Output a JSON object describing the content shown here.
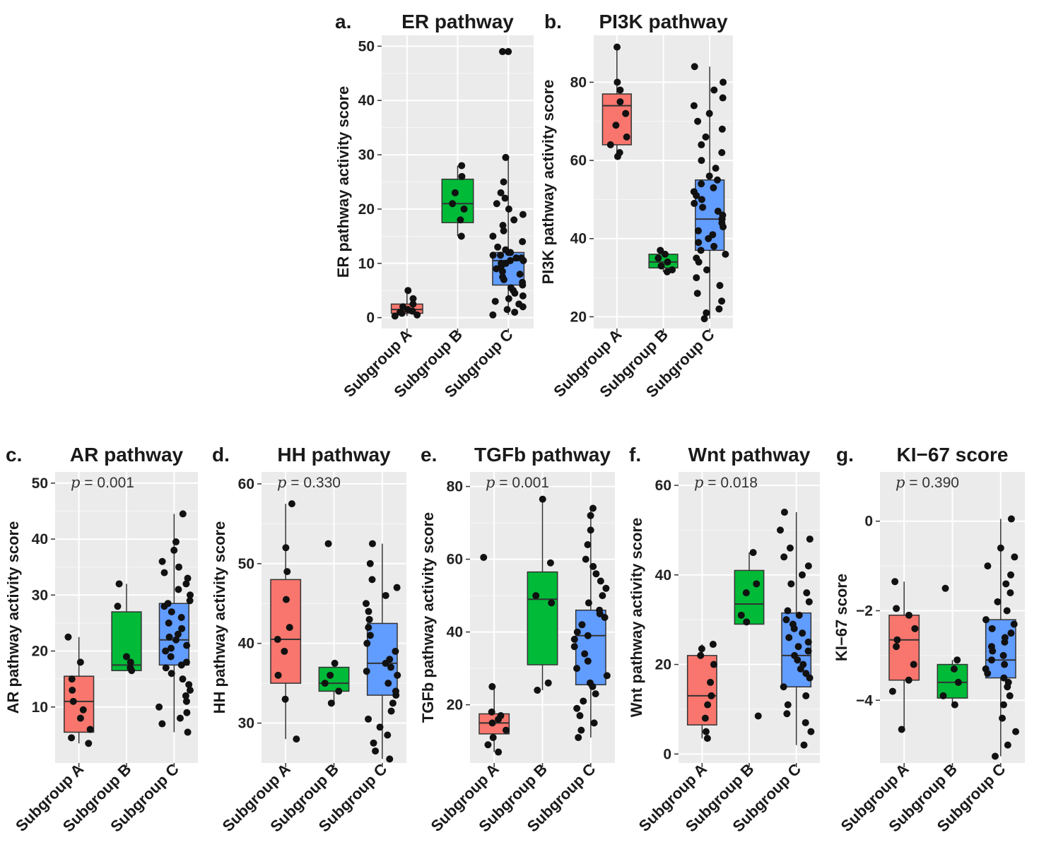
{
  "chart_data": [
    {
      "type": "box",
      "panel": "a.",
      "title": "ER pathway",
      "ylabel": "ER pathway activity score",
      "ylim": [
        -2,
        52
      ],
      "yticks": [
        0,
        10,
        20,
        30,
        40,
        50
      ],
      "categories": [
        "Subgroup A",
        "Subgroup B",
        "Subgroup C"
      ],
      "pvalue": null,
      "boxes": [
        {
          "group": "Subgroup A",
          "color": "#f8766d",
          "min": 0.3,
          "q1": 0.8,
          "median": 1.5,
          "q3": 2.5,
          "max": 5,
          "points": [
            0.3,
            0.5,
            0.8,
            1,
            1.2,
            1.5,
            2,
            2.5,
            3.5,
            5
          ]
        },
        {
          "group": "Subgroup B",
          "color": "#00ba38",
          "min": 15,
          "q1": 17.5,
          "median": 21,
          "q3": 25.5,
          "max": 28,
          "points": [
            15,
            18,
            20,
            21,
            23,
            26,
            28
          ]
        },
        {
          "group": "Subgroup C",
          "color": "#619cff",
          "min": 0.5,
          "q1": 6,
          "median": 10.5,
          "q3": 12,
          "max": 29.5,
          "outliers": [
            49
          ],
          "points": [
            0.5,
            1,
            1.5,
            2,
            2.5,
            3,
            3.5,
            4,
            4.5,
            5,
            5.5,
            6,
            6.5,
            7,
            7.5,
            8,
            8.5,
            9,
            9.5,
            10,
            10,
            10.5,
            10.5,
            11,
            11,
            11.5,
            11.5,
            12,
            12,
            12.5,
            13,
            14,
            15,
            16,
            17,
            18,
            19,
            20,
            21,
            22,
            23,
            25,
            29.5,
            49
          ]
        }
      ]
    },
    {
      "type": "box",
      "panel": "b.",
      "title": "PI3K pathway",
      "ylabel": "PI3K pathway activity score",
      "ylim": [
        17,
        92
      ],
      "yticks": [
        20,
        40,
        60,
        80
      ],
      "categories": [
        "Subgroup A",
        "Subgroup B",
        "Subgroup C"
      ],
      "pvalue": null,
      "boxes": [
        {
          "group": "Subgroup A",
          "color": "#f8766d",
          "min": 61,
          "q1": 64,
          "median": 74,
          "q3": 77,
          "max": 89,
          "points": [
            61,
            62,
            64,
            66,
            69,
            72,
            75,
            78,
            80,
            89
          ]
        },
        {
          "group": "Subgroup B",
          "color": "#00ba38",
          "min": 31.5,
          "q1": 32.5,
          "median": 34,
          "q3": 36,
          "max": 37,
          "points": [
            31.5,
            32,
            33,
            34,
            35,
            36,
            37
          ]
        },
        {
          "group": "Subgroup C",
          "color": "#619cff",
          "min": 19.5,
          "q1": 37,
          "median": 45,
          "q3": 55,
          "max": 84,
          "points": [
            19.5,
            21,
            22,
            24,
            26,
            28,
            30,
            32,
            34,
            35,
            36,
            37,
            38,
            39,
            40,
            41,
            42,
            43,
            44,
            45,
            45,
            46,
            47,
            48,
            49,
            50,
            51,
            52,
            53,
            54,
            55,
            56,
            58,
            60,
            62,
            64,
            66,
            68,
            70,
            72,
            74,
            76,
            78,
            80,
            84
          ]
        }
      ]
    },
    {
      "type": "box",
      "panel": "c.",
      "title": "AR pathway",
      "ylabel": "AR pathway activity score",
      "ylim": [
        0,
        52
      ],
      "yticks": [
        10,
        20,
        30,
        40,
        50
      ],
      "categories": [
        "Subgroup A",
        "Subgroup B",
        "Subgroup C"
      ],
      "pvalue": "= 0.001",
      "boxes": [
        {
          "group": "Subgroup A",
          "color": "#f8766d",
          "min": 3.5,
          "q1": 5.5,
          "median": 11,
          "q3": 15.5,
          "max": 22.5,
          "points": [
            3.5,
            4.5,
            6,
            8,
            9.5,
            11,
            13,
            15,
            18,
            22.5
          ]
        },
        {
          "group": "Subgroup B",
          "color": "#00ba38",
          "min": 16.5,
          "q1": 16.5,
          "median": 17.5,
          "q3": 27,
          "max": 32,
          "points": [
            16.5,
            17,
            18,
            19,
            28,
            32
          ]
        },
        {
          "group": "Subgroup C",
          "color": "#619cff",
          "min": 5.5,
          "q1": 17.5,
          "median": 22,
          "q3": 28.5,
          "max": 44.5,
          "points": [
            5.5,
            7,
            8,
            9,
            10,
            11,
            12,
            13,
            14,
            15,
            16,
            17,
            17.5,
            18,
            19,
            20,
            20.5,
            21,
            22,
            22.5,
            23,
            24,
            25,
            26,
            27,
            28,
            28.5,
            29,
            30,
            31,
            32,
            33,
            34,
            35,
            36,
            38,
            39.5,
            44.5
          ]
        }
      ]
    },
    {
      "type": "box",
      "panel": "d.",
      "title": "HH pathway",
      "ylabel": "HH pathway activity score",
      "ylim": [
        25,
        61.5
      ],
      "yticks": [
        30,
        40,
        50,
        60
      ],
      "categories": [
        "Subgroup A",
        "Subgroup B",
        "Subgroup C"
      ],
      "pvalue": "= 0.330",
      "boxes": [
        {
          "group": "Subgroup A",
          "color": "#f8766d",
          "min": 28,
          "q1": 35,
          "median": 40.5,
          "q3": 48,
          "max": 57.5,
          "points": [
            28,
            33,
            36,
            39,
            40.5,
            42,
            45.5,
            49,
            52,
            57.5
          ]
        },
        {
          "group": "Subgroup B",
          "color": "#00ba38",
          "min": 32.5,
          "q1": 34,
          "median": 35,
          "q3": 37,
          "max": 37.5,
          "points": [
            32.5,
            34,
            35,
            36,
            37.5,
            52.5
          ]
        },
        {
          "group": "Subgroup C",
          "color": "#619cff",
          "min": 25.5,
          "q1": 33.5,
          "median": 37.5,
          "q3": 42.5,
          "max": 52.5,
          "points": [
            25.5,
            26.5,
            27.5,
            28.5,
            29.5,
            30.5,
            31.5,
            32.5,
            33.5,
            34,
            35,
            36,
            36.5,
            37,
            37.5,
            38,
            39,
            40,
            41,
            42,
            43,
            44,
            45,
            46,
            47,
            48,
            50,
            52.5
          ]
        }
      ]
    },
    {
      "type": "box",
      "panel": "e.",
      "title": "TGFb pathway",
      "ylabel": "TGFb pathway activity score",
      "ylim": [
        4,
        84
      ],
      "yticks": [
        20,
        40,
        60,
        80
      ],
      "categories": [
        "Subgroup A",
        "Subgroup B",
        "Subgroup C"
      ],
      "pvalue": "= 0.001",
      "boxes": [
        {
          "group": "Subgroup A",
          "color": "#f8766d",
          "min": 7,
          "q1": 12,
          "median": 15,
          "q3": 17.5,
          "max": 25,
          "points": [
            7,
            9,
            11,
            13,
            15,
            16,
            17,
            18,
            25,
            60.5
          ]
        },
        {
          "group": "Subgroup B",
          "color": "#00ba38",
          "min": 24,
          "q1": 31,
          "median": 49,
          "q3": 56.5,
          "max": 76.5,
          "points": [
            24,
            26,
            48,
            50,
            59,
            76.5
          ]
        },
        {
          "group": "Subgroup C",
          "color": "#619cff",
          "min": 11,
          "q1": 25.5,
          "median": 39,
          "q3": 46,
          "max": 74,
          "points": [
            11,
            13,
            15,
            17,
            19,
            21,
            23,
            25,
            26,
            28,
            30,
            32,
            34,
            36,
            38,
            39,
            40,
            42,
            44,
            45,
            46,
            48,
            50,
            52,
            54,
            56,
            58,
            60,
            64,
            68,
            72,
            74
          ]
        }
      ]
    },
    {
      "type": "box",
      "panel": "f.",
      "title": "Wnt pathway",
      "ylabel": "Wnt pathway activity score",
      "ylim": [
        -2,
        63
      ],
      "yticks": [
        0,
        20,
        40,
        60
      ],
      "categories": [
        "Subgroup A",
        "Subgroup B",
        "Subgroup C"
      ],
      "pvalue": "= 0.018",
      "boxes": [
        {
          "group": "Subgroup A",
          "color": "#f8766d",
          "min": 3.5,
          "q1": 6.5,
          "median": 13,
          "q3": 22,
          "max": 24.5,
          "points": [
            3.5,
            5,
            8,
            11,
            13,
            16,
            20,
            22,
            23.5,
            24.5
          ]
        },
        {
          "group": "Subgroup B",
          "color": "#00ba38",
          "min": 29,
          "q1": 29,
          "median": 33.5,
          "q3": 41,
          "max": 45,
          "points": [
            8.5,
            29.5,
            31,
            36,
            38,
            45
          ]
        },
        {
          "group": "Subgroup C",
          "color": "#619cff",
          "min": 2,
          "q1": 15,
          "median": 22,
          "q3": 31.5,
          "max": 54,
          "points": [
            2,
            5,
            7,
            9,
            11,
            13,
            15,
            17,
            18,
            19,
            20,
            21,
            22,
            23,
            24,
            25,
            26,
            27,
            28,
            29,
            30,
            31,
            32,
            34,
            36,
            38,
            40,
            42,
            44,
            46,
            48,
            50,
            54
          ]
        }
      ]
    },
    {
      "type": "box",
      "panel": "g.",
      "title": "KI−67 score",
      "ylabel": "KI−67 score",
      "ylim": [
        -5.4,
        1.1
      ],
      "yticks": [
        0,
        -2,
        -4
      ],
      "categories": [
        "Subgroup A",
        "Subgroup B",
        "Subgroup C"
      ],
      "pvalue": "= 0.390",
      "boxes": [
        {
          "group": "Subgroup A",
          "color": "#f8766d",
          "min": -4.65,
          "q1": -3.55,
          "median": -2.65,
          "q3": -2.1,
          "max": -1.35,
          "points": [
            -4.65,
            -3.8,
            -3.55,
            -3.2,
            -2.8,
            -2.65,
            -2.4,
            -2.1,
            -1.95,
            -1.35
          ]
        },
        {
          "group": "Subgroup B",
          "color": "#00ba38",
          "min": -4.1,
          "q1": -3.95,
          "median": -3.6,
          "q3": -3.2,
          "max": -3.1,
          "points": [
            -4.1,
            -3.9,
            -3.6,
            -3.3,
            -3.1,
            -1.5
          ]
        },
        {
          "group": "Subgroup C",
          "color": "#619cff",
          "min": -5.25,
          "q1": -3.5,
          "median": -3.1,
          "q3": -2.2,
          "max": 0.05,
          "points": [
            -5.25,
            -5,
            -4.7,
            -4.4,
            -4.1,
            -3.9,
            -3.7,
            -3.6,
            -3.5,
            -3.4,
            -3.3,
            -3.2,
            -3.1,
            -3,
            -2.9,
            -2.8,
            -2.7,
            -2.6,
            -2.5,
            -2.4,
            -2.3,
            -2.2,
            -2,
            -1.8,
            -1.6,
            -1.4,
            -1.2,
            -1,
            -0.8,
            -0.6,
            0.05
          ]
        }
      ]
    }
  ]
}
